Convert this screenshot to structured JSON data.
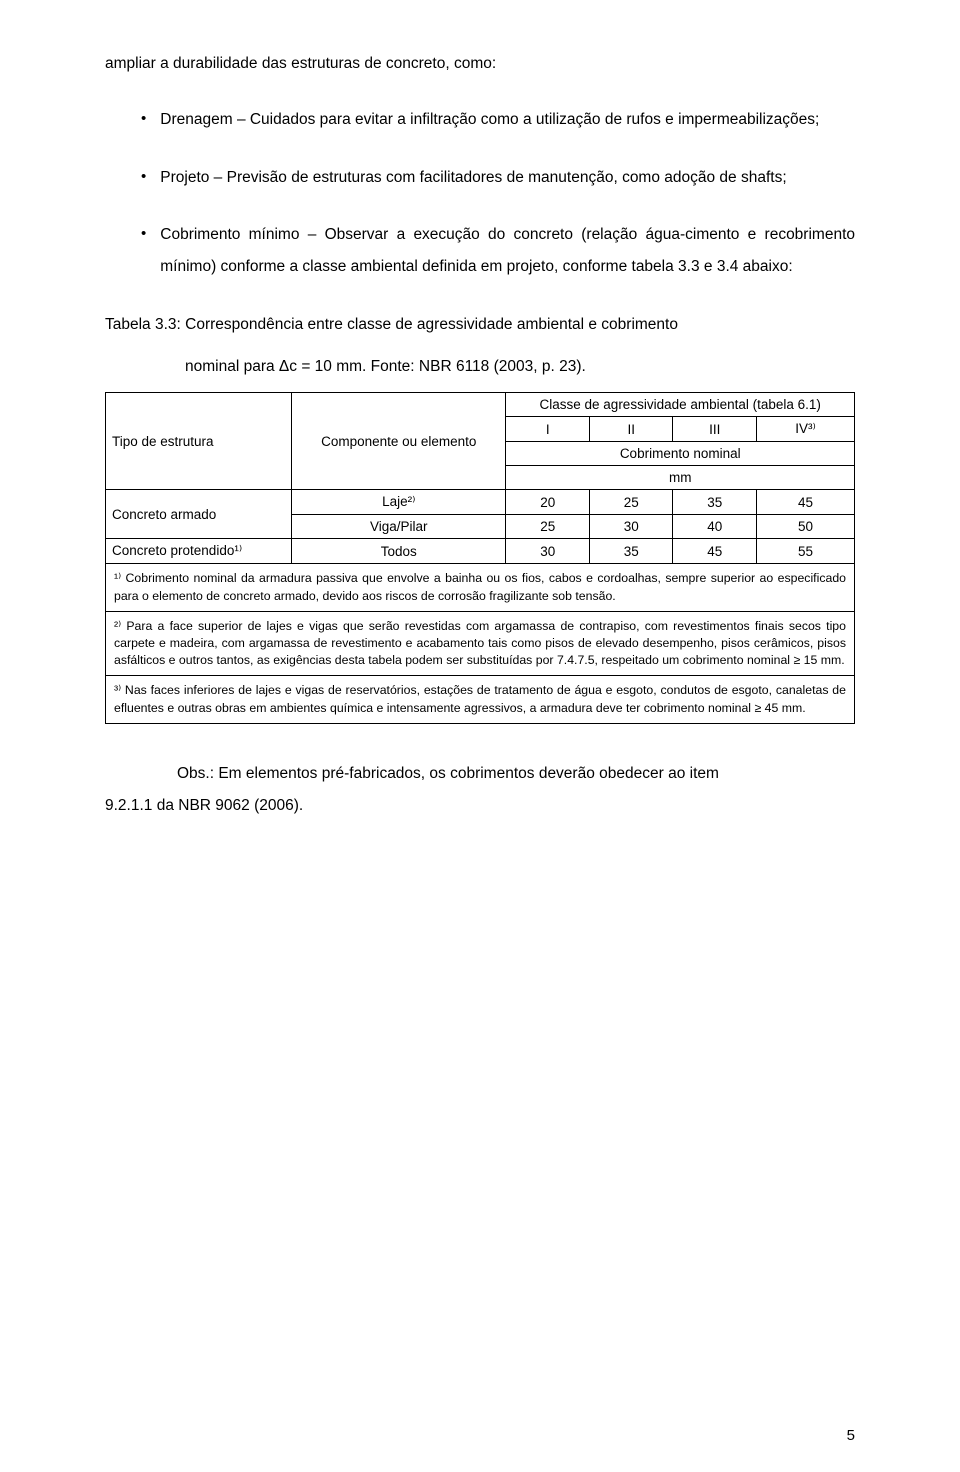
{
  "intro": "ampliar a durabilidade das estruturas de concreto, como:",
  "bullets": [
    "Drenagem – Cuidados para evitar a infiltração como a utilização de rufos e impermeabilizações;",
    "Projeto – Previsão de estruturas com facilitadores de manutenção, como adoção de shafts;",
    "Cobrimento mínimo – Observar a execução do concreto (relação água-cimento e recobrimento mínimo) conforme a classe ambiental definida em projeto, conforme tabela 3.3 e 3.4 abaixo:"
  ],
  "caption_line1": "Tabela 3.3: Correspondência entre classe de agressividade ambiental e cobrimento",
  "caption_line2": "nominal para Δc = 10 mm. Fonte: NBR 6118 (2003, p. 23).",
  "table_header_top": "Classe de agressividade ambiental (tabela 6.1)",
  "col_tipo": "Tipo de estrutura",
  "col_comp": "Componente ou elemento",
  "class_cols": [
    "I",
    "II",
    "III",
    "IV³⁾"
  ],
  "cobrimento_label": "Cobrimento nominal",
  "mm_label": "mm",
  "row1_label": "Concreto armado",
  "row1a": [
    "Laje²⁾",
    "20",
    "25",
    "35",
    "45"
  ],
  "row1b": [
    "Viga/Pilar",
    "25",
    "30",
    "40",
    "50"
  ],
  "row2_label": "Concreto protendido¹⁾",
  "row2": [
    "Todos",
    "30",
    "35",
    "45",
    "55"
  ],
  "fn1": "¹⁾ Cobrimento nominal da armadura passiva que envolve a bainha ou os fios, cabos e cordoalhas, sempre superior ao especificado para o elemento de concreto armado, devido aos riscos de corrosão fragilizante sob tensão.",
  "fn2": "²⁾ Para a face superior de lajes e vigas que serão revestidas com argamassa de contrapiso, com revestimentos finais secos tipo carpete e madeira, com argamassa de revestimento e acabamento tais como pisos de elevado desempenho, pisos cerâmicos, pisos asfálticos e outros tantos, as exigências desta tabela podem ser substituídas por 7.4.7.5, respeitado um cobrimento nominal ≥ 15 mm.",
  "fn3": "³⁾ Nas faces inferiores de lajes e vigas de reservatórios, estações de tratamento de água e esgoto, condutos de esgoto, canaletas de efluentes e outras obras em ambientes química e intensamente agressivos, a armadura deve ter cobrimento nominal ≥ 45 mm.",
  "obs_line1": "Obs.: Em elementos pré-fabricados, os cobrimentos deverão obedecer ao item",
  "obs_line2": "9.2.1.1 da NBR 9062 (2006).",
  "page_number": "5"
}
